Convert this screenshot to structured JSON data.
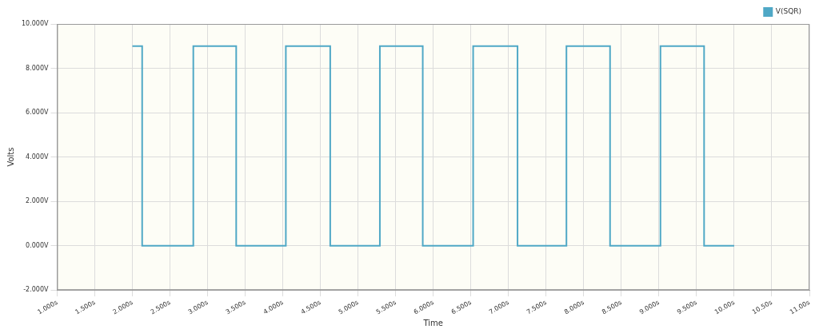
{
  "chart_data": {
    "type": "line",
    "x_label": "Time",
    "y_label": "Volts",
    "x": [
      2,
      2.13,
      2.13,
      2.81,
      2.81,
      3.38,
      3.38,
      4.04,
      4.04,
      4.63,
      4.63,
      5.29,
      5.29,
      5.86,
      5.86,
      6.53,
      6.53,
      7.12,
      7.12,
      7.77,
      7.77,
      8.35,
      8.35,
      9.02,
      9.02,
      9.6,
      9.6,
      10.0
    ],
    "series": [
      {
        "name": "V(SQR)",
        "color": "#4fa8c6",
        "marker": "none",
        "line_style": "solid",
        "values": [
          9,
          9,
          0,
          0,
          9,
          9,
          0,
          0,
          9,
          9,
          0,
          0,
          9,
          9,
          0,
          0,
          9,
          9,
          0,
          0,
          9,
          9,
          0,
          0,
          9,
          9,
          0,
          0
        ]
      }
    ],
    "xlim": [
      1,
      11
    ],
    "xticks": [
      {
        "value": 1,
        "label": "1.000s"
      },
      {
        "value": 1.5,
        "label": "1.500s"
      },
      {
        "value": 2,
        "label": "2.000s"
      },
      {
        "value": 2.5,
        "label": "2.500s"
      },
      {
        "value": 3,
        "label": "3.000s"
      },
      {
        "value": 3.5,
        "label": "3.500s"
      },
      {
        "value": 4,
        "label": "4.000s"
      },
      {
        "value": 4.5,
        "label": "4.500s"
      },
      {
        "value": 5,
        "label": "5.000s"
      },
      {
        "value": 5.5,
        "label": "5.500s"
      },
      {
        "value": 6,
        "label": "6.000s"
      },
      {
        "value": 6.5,
        "label": "6.500s"
      },
      {
        "value": 7,
        "label": "7.000s"
      },
      {
        "value": 7.5,
        "label": "7.500s"
      },
      {
        "value": 8,
        "label": "8.000s"
      },
      {
        "value": 8.5,
        "label": "8.500s"
      },
      {
        "value": 9,
        "label": "9.000s"
      },
      {
        "value": 9.5,
        "label": "9.500s"
      },
      {
        "value": 10,
        "label": "10.00s"
      },
      {
        "value": 10.5,
        "label": "10.50s"
      },
      {
        "value": 11,
        "label": "11.00s"
      }
    ],
    "ylim": [
      -2,
      10
    ],
    "yticks": [
      {
        "value": -2,
        "label": "-2.000V"
      },
      {
        "value": 0,
        "label": "0.000V"
      },
      {
        "value": 2,
        "label": "2.000V"
      },
      {
        "value": 4,
        "label": "4.000V"
      },
      {
        "value": 6,
        "label": "6.000V"
      },
      {
        "value": 8,
        "label": "8.000V"
      },
      {
        "value": 10,
        "label": "10.000V"
      }
    ],
    "grid": true,
    "legend": "top-right"
  }
}
